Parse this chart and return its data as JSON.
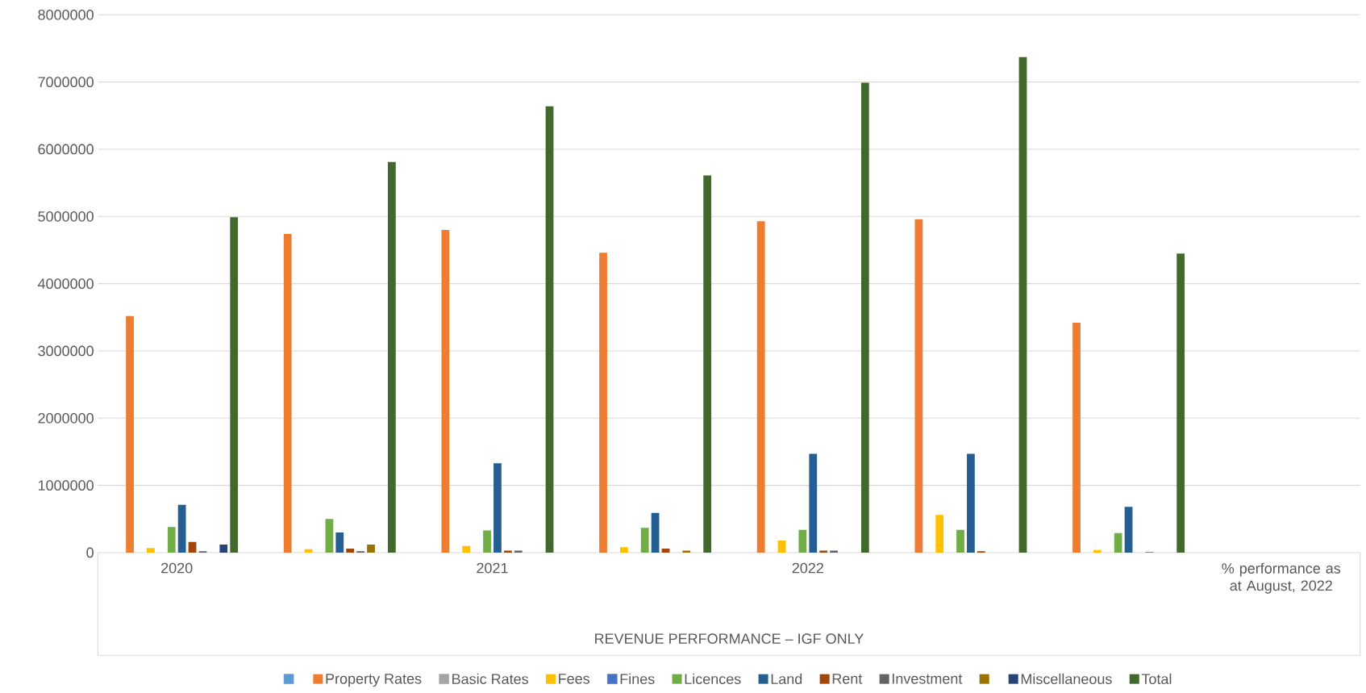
{
  "chart_data": {
    "type": "bar",
    "xlabel": "REVENUE PERFORMANCE – IGF ONLY",
    "categories": [
      "2020",
      null,
      "2021",
      null,
      "2022",
      null,
      null,
      "% performance as at August, 2022"
    ],
    "series": [
      {
        "color": "#5b9bd5",
        "values": [
          null,
          null,
          null,
          null,
          null,
          null,
          null,
          null
        ]
      },
      {
        "name": "Property Rates",
        "color": "#ed7d31",
        "values": [
          3520000,
          4740000,
          4800000,
          4460000,
          4930000,
          4960000,
          3420000,
          null
        ]
      },
      {
        "name": "Basic Rates",
        "color": "#a5a5a5",
        "values": [
          null,
          null,
          null,
          null,
          null,
          null,
          null,
          null
        ]
      },
      {
        "name": "Fees",
        "color": "#ffc000",
        "values": [
          70000,
          50000,
          100000,
          80000,
          180000,
          560000,
          40000,
          null
        ]
      },
      {
        "name": "Fines",
        "color": "#4472c4",
        "values": [
          null,
          null,
          null,
          null,
          null,
          null,
          null,
          null
        ]
      },
      {
        "name": "Licences",
        "color": "#70ad47",
        "values": [
          380000,
          500000,
          330000,
          370000,
          340000,
          340000,
          290000,
          null
        ]
      },
      {
        "name": "Land",
        "color": "#255e91",
        "values": [
          710000,
          300000,
          1330000,
          590000,
          1470000,
          1470000,
          680000,
          null
        ]
      },
      {
        "name": "Rent",
        "color": "#9e480e",
        "values": [
          160000,
          60000,
          30000,
          60000,
          30000,
          20000,
          null,
          null
        ]
      },
      {
        "name": "Investment",
        "color": "#636363",
        "values": [
          20000,
          20000,
          30000,
          null,
          30000,
          null,
          10000,
          null
        ]
      },
      {
        "color": "#997300",
        "values": [
          null,
          120000,
          null,
          30000,
          null,
          null,
          null,
          null
        ]
      },
      {
        "name": "Miscellaneous",
        "color": "#264478",
        "values": [
          120000,
          null,
          null,
          null,
          null,
          null,
          null,
          null
        ]
      },
      {
        "name": "Total",
        "color": "#43682b",
        "values": [
          4990000,
          5810000,
          6640000,
          5610000,
          6990000,
          7370000,
          4450000,
          null
        ]
      }
    ],
    "ylim": [
      0,
      8000000
    ],
    "yticks": [
      0,
      1000000,
      2000000,
      3000000,
      4000000,
      5000000,
      6000000,
      7000000,
      8000000
    ],
    "grid": "y",
    "legend": "bottom"
  }
}
